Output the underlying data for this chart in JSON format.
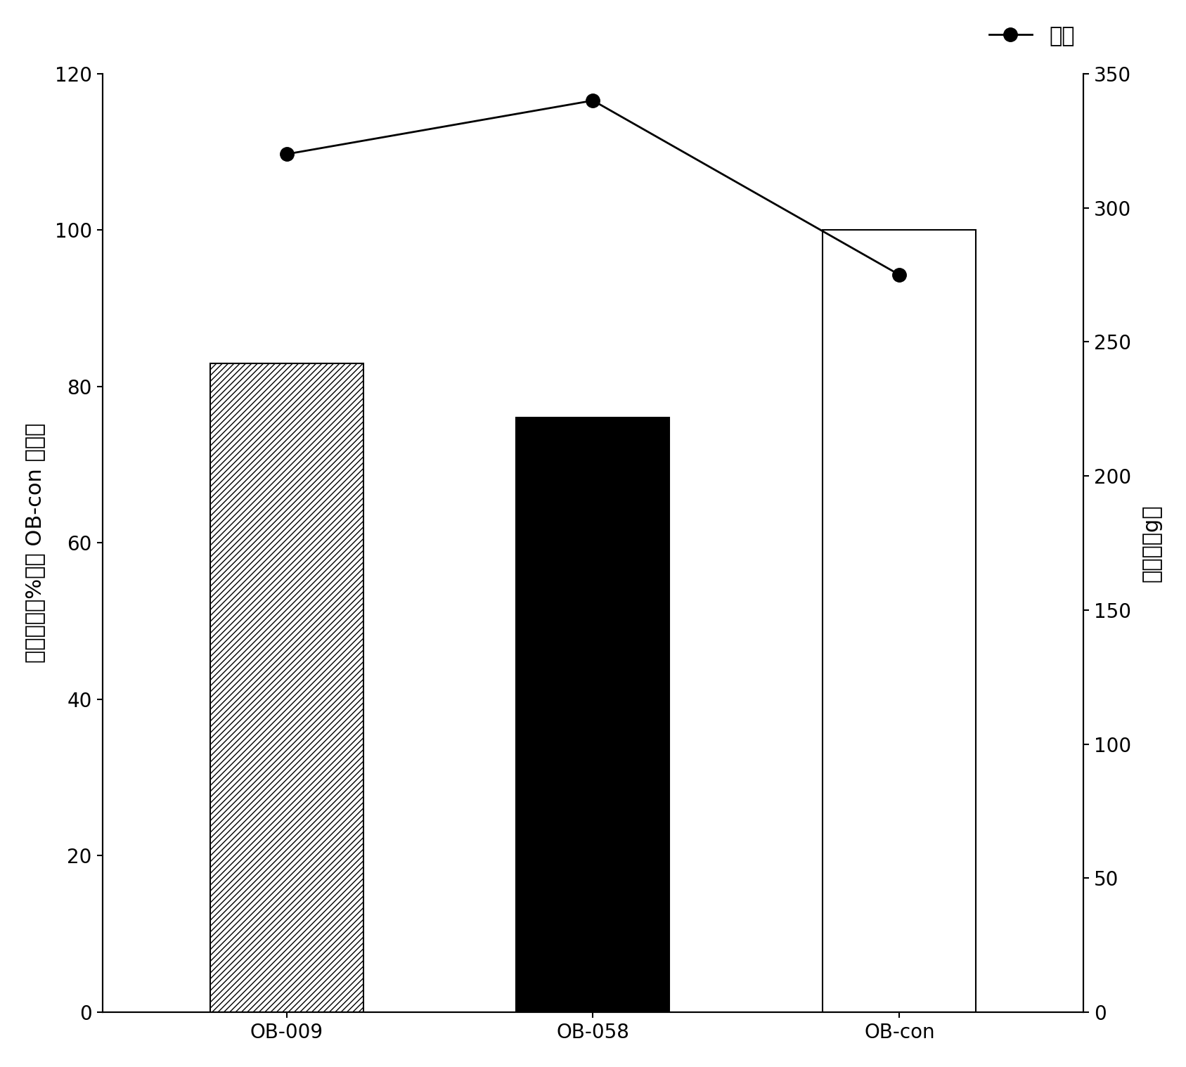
{
  "categories": [
    "OB-009",
    "OB-058",
    "OB-con"
  ],
  "bar_values": [
    83,
    76,
    100
  ],
  "bar_colors": [
    "white",
    "black",
    "white"
  ],
  "bar_hatch": [
    "////",
    "",
    ""
  ],
  "bar_edgecolors": [
    "black",
    "black",
    "black"
  ],
  "line_values": [
    320,
    340,
    275
  ],
  "line_color": "black",
  "line_marker": "o",
  "line_marker_facecolor": "black",
  "line_marker_size": 14,
  "ylabel_left": "代谢效率（%，由 OB-con 调整）",
  "ylabel_right": "饥料量（g）",
  "ylim_left": [
    0,
    120
  ],
  "ylim_right": [
    0,
    350
  ],
  "yticks_left": [
    0,
    20,
    40,
    60,
    80,
    100,
    120
  ],
  "yticks_right": [
    0,
    50,
    100,
    150,
    200,
    250,
    300,
    350
  ],
  "legend_label": "饥料",
  "background_color": "white",
  "tick_fontsize": 20,
  "label_fontsize": 22,
  "legend_fontsize": 22,
  "bar_width": 0.5,
  "figure_width": 16.87,
  "figure_height": 15.18,
  "dpi": 100
}
